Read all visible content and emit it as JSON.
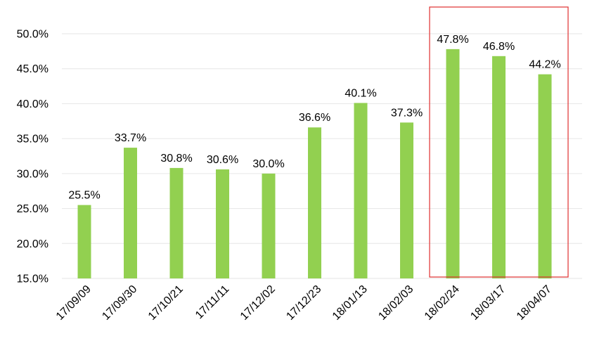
{
  "chart_data": {
    "type": "bar",
    "categories": [
      "17/09/09",
      "17/09/30",
      "17/10/21",
      "17/11/11",
      "17/12/02",
      "17/12/23",
      "18/01/13",
      "18/02/03",
      "18/02/24",
      "18/03/17",
      "18/04/07"
    ],
    "values": [
      25.5,
      33.7,
      30.8,
      30.6,
      30.0,
      36.6,
      40.1,
      37.3,
      47.8,
      46.8,
      44.2
    ],
    "data_labels": [
      "25.5%",
      "33.7%",
      "30.8%",
      "30.6%",
      "30.0%",
      "36.6%",
      "40.1%",
      "37.3%",
      "47.8%",
      "46.8%",
      "44.2%"
    ],
    "y_ticks": [
      15,
      20,
      25,
      30,
      35,
      40,
      45,
      50
    ],
    "y_tick_labels": [
      "15.0%",
      "20.0%",
      "25.0%",
      "30.0%",
      "35.0%",
      "40.0%",
      "45.0%",
      "50.0%"
    ],
    "ylim": [
      15,
      50
    ],
    "grid": true,
    "title": "",
    "xlabel": "",
    "ylabel": "",
    "highlight": {
      "categories": [
        "18/02/24",
        "18/03/17",
        "18/04/07"
      ],
      "style": "red-outline-box"
    },
    "colors": {
      "bar": "#92d050",
      "grid": "#e6e6e6",
      "highlight": "#e03030"
    }
  }
}
